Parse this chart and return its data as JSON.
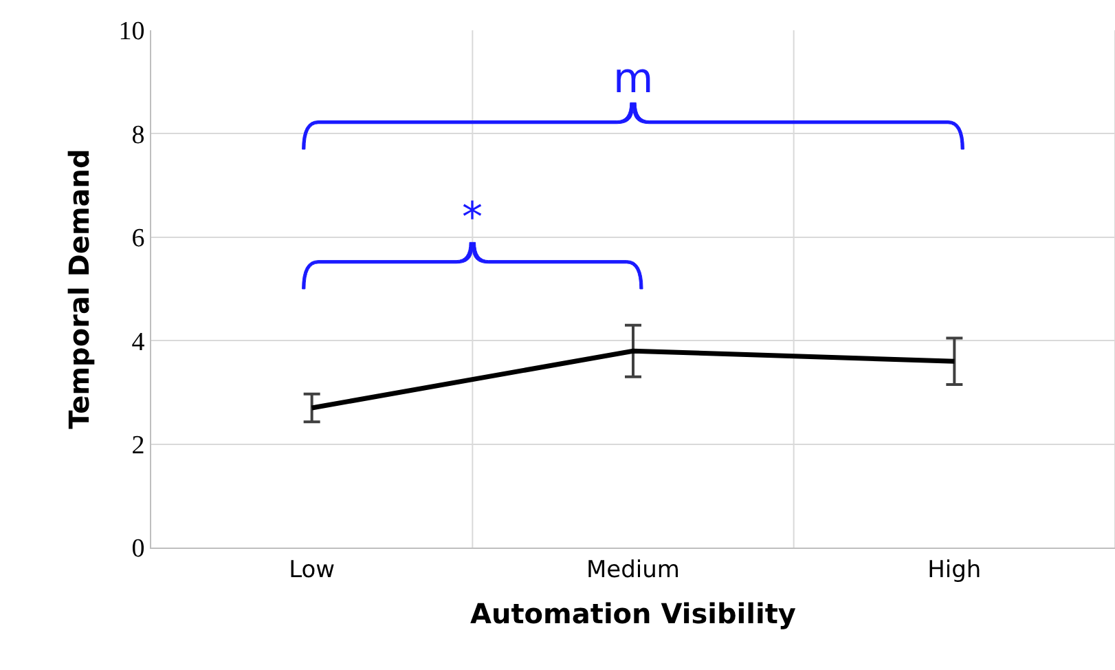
{
  "chart_data": {
    "type": "line",
    "xlabel": "Automation Visibility",
    "ylabel": "Temporal Demand",
    "categories": [
      "Low",
      "Medium",
      "High"
    ],
    "series": [
      {
        "color": "#000000",
        "values": [
          2.7,
          3.8,
          3.6
        ],
        "errors": [
          0.27,
          0.5,
          0.45
        ]
      }
    ],
    "ylim": [
      0,
      10
    ],
    "yticks": [
      0,
      2,
      4,
      6,
      8,
      10
    ],
    "grid": true,
    "marker": "none",
    "line_style": "solid",
    "annotations": [
      "*",
      "m"
    ]
  }
}
